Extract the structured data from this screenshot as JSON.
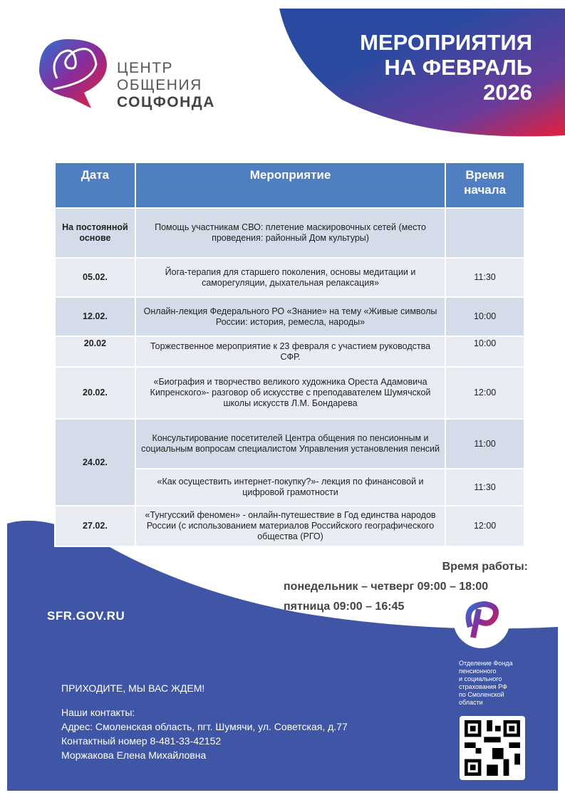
{
  "header": {
    "title_lines": [
      "МЕРОПРИЯТИЯ",
      "НА ФЕВРАЛЬ",
      "2026"
    ]
  },
  "logo": {
    "lines": [
      "ЦЕНТР",
      "ОБЩЕНИЯ",
      "СОЦФОНДА"
    ]
  },
  "table": {
    "headers": [
      "Дата",
      "Мероприятие",
      "Время начала"
    ],
    "rows": [
      {
        "date": "На постоянной основе",
        "event": "Помощь участникам СВО: плетение маскировочных сетей (место проведения: районный Дом культуры)",
        "time": ""
      },
      {
        "date": "05.02.",
        "event": "Йога-терапия для старшего поколения, основы медитации и саморегуляции, дыхательная релаксация»",
        "time": "11:30"
      },
      {
        "date": "12.02.",
        "event": "Онлайн-лекция Федерального РО «Знание» на тему «Живые символы России: история, ремесла, народы»",
        "time": "10:00"
      },
      {
        "date": "20.02",
        "event": "Торжественное мероприятие к 23 февраля с участием руководства СФР.",
        "time": "10:00"
      },
      {
        "date": "20.02.",
        "event": "«Биография и творчество великого художника Ореста Адамовича Кипренского»- разговор об искусстве с преподавателем Шумячской школы искусств Л.М. Бондарева",
        "time": "12:00"
      },
      {
        "date": "24.02.",
        "event": "Консультирование посетителей Центра общения по пенсионным и социальным вопросам специалистом Управления установления пенсий",
        "time": "11:00"
      },
      {
        "date": "",
        "event": "«Как осуществить интернет-покупку?»- лекция по финансовой и цифровой грамотности",
        "time": "11:30"
      },
      {
        "date": "27.02.",
        "event": "«Тунгусский феномен» - онлайн-путешествие в Год единства народов России (с использованием материалов Российского географического общества (РГО)",
        "time": "12:00"
      }
    ]
  },
  "hours": {
    "title": "Время работы:",
    "line1": "понедельник – четверг 09:00 – 18:00",
    "line2": "пятница 09:00 – 16:45"
  },
  "footer": {
    "site": "SFR.GOV.RU",
    "welcome": "ПРИХОДИТЕ, МЫ ВАС ЖДЕМ!",
    "contacts_title": "Наши контакты:",
    "address": "Адрес: Смоленская область, пгт. Шумячи,  ул. Советская, д.77",
    "phone": "Контактный номер  8-481-33-42152",
    "person": "Моржакова Елена Михайловна",
    "sfr_lines": [
      "Отделение Фонда",
      "пенсионного",
      "и социального",
      "страхования РФ",
      "по Смоленской",
      "области"
    ]
  },
  "colors": {
    "blue": "#3f56a6",
    "header": "#4f7fc0",
    "accent": "#e31e3c"
  }
}
